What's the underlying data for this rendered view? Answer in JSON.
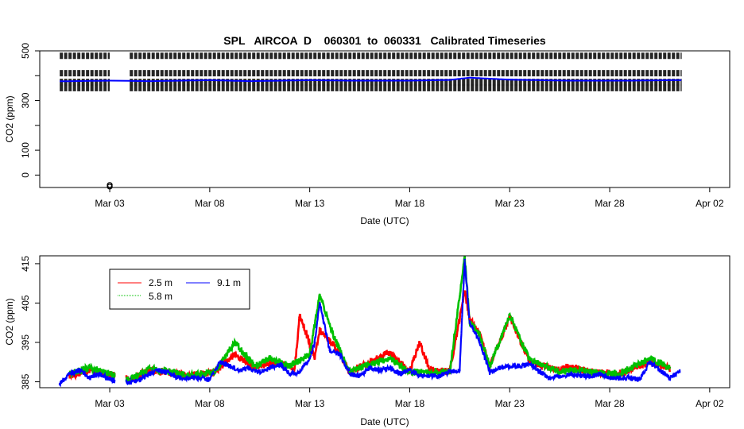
{
  "chart_data": [
    {
      "type": "scatter",
      "title": "SPL   AIRCOA  D    060301  to  060331   Calibrated Timeseries",
      "xlabel": "Date (UTC)",
      "ylabel": "CO2 (ppm)",
      "xlim": [
        "2006-02-27 12:00",
        "2006-04-03 00:00"
      ],
      "ylim": [
        -50,
        500
      ],
      "x_ticks": [
        "Mar 03",
        "Mar 08",
        "Mar 13",
        "Mar 18",
        "Mar 23",
        "Mar 28",
        "Apr 02"
      ],
      "y_ticks": [
        0,
        100,
        200,
        300,
        400,
        500
      ],
      "y_tick_labels": [
        "0",
        "100",
        "",
        "300",
        "",
        "500"
      ],
      "grid": false,
      "calibration_levels": [
        350,
        375,
        410,
        480
      ],
      "calibration_colour": "#000000",
      "gap": [
        "2006-03-03 00:00",
        "2006-03-04 00:00"
      ],
      "outlier": {
        "x": "2006-03-03 00:00",
        "y": -40
      },
      "series": [
        {
          "colour": "#0000ff",
          "x": [
            "2006-03-01",
            "2006-03-03",
            "2006-03-05",
            "2006-03-08",
            "2006-03-10",
            "2006-03-13",
            "2006-03-15",
            "2006-03-18",
            "2006-03-20",
            "2006-03-21",
            "2006-03-23",
            "2006-03-26",
            "2006-03-29",
            "2006-03-31"
          ],
          "y": [
            378,
            380,
            378,
            382,
            378,
            382,
            380,
            380,
            383,
            392,
            384,
            380,
            380,
            382
          ]
        }
      ]
    },
    {
      "type": "line",
      "xlabel": "Date (UTC)",
      "ylabel": "CO2 (ppm)",
      "xlim": [
        "2006-02-27 12:00",
        "2006-04-03 00:00"
      ],
      "ylim": [
        383.5,
        417
      ],
      "x_ticks": [
        "Mar 03",
        "Mar 08",
        "Mar 13",
        "Mar 18",
        "Mar 23",
        "Mar 28",
        "Apr 02"
      ],
      "y_ticks": [
        385,
        395,
        405,
        415
      ],
      "grid": false,
      "legend_position": "top-left",
      "series": [
        {
          "name": "2.5 m",
          "colour": "#ff0000",
          "x": [
            "2006-03-01 00:00",
            "2006-03-02 00:00",
            "2006-03-03 00:00",
            "2006-03-04 00:00",
            "2006-03-05 00:00",
            "2006-03-07 00:00",
            "2006-03-08 06:00",
            "2006-03-09 06:00",
            "2006-03-10 06:00",
            "2006-03-11 00:00",
            "2006-03-12 06:00",
            "2006-03-12 12:00",
            "2006-03-13 06:00",
            "2006-03-13 12:00",
            "2006-03-14 06:00",
            "2006-03-15 00:00",
            "2006-03-16 00:00",
            "2006-03-17 00:00",
            "2006-03-18 00:00",
            "2006-03-18 12:00",
            "2006-03-19 00:00",
            "2006-03-20 00:00",
            "2006-03-20 18:00",
            "2006-03-21 00:00",
            "2006-03-21 12:00",
            "2006-03-22 00:00",
            "2006-03-23 00:00",
            "2006-03-24 00:00",
            "2006-03-25 12:00",
            "2006-03-26 00:00",
            "2006-03-27 00:00",
            "2006-03-28 12:00",
            "2006-03-30 00:00",
            "2006-03-31 00:00"
          ],
          "y": [
            386.5,
            388,
            387,
            385.5,
            388,
            386.5,
            387.5,
            392,
            388.5,
            390,
            388.5,
            402,
            391,
            398,
            394,
            387.5,
            390,
            392.5,
            387.5,
            395,
            388,
            387.5,
            408,
            401,
            397,
            389,
            401.5,
            390,
            388,
            389,
            387.5,
            387,
            390,
            388.5
          ]
        },
        {
          "name": "5.8 m",
          "colour": "#00c000",
          "x": [
            "2006-03-01 00:00",
            "2006-03-02 00:00",
            "2006-03-03 00:00",
            "2006-03-04 00:00",
            "2006-03-05 00:00",
            "2006-03-07 00:00",
            "2006-03-08 06:00",
            "2006-03-09 06:00",
            "2006-03-10 06:00",
            "2006-03-11 00:00",
            "2006-03-12 00:00",
            "2006-03-13 00:00",
            "2006-03-13 12:00",
            "2006-03-14 06:00",
            "2006-03-15 00:00",
            "2006-03-16 00:00",
            "2006-03-17 00:00",
            "2006-03-18 00:00",
            "2006-03-19 00:00",
            "2006-03-20 00:00",
            "2006-03-20 18:00",
            "2006-03-21 00:00",
            "2006-03-21 12:00",
            "2006-03-22 00:00",
            "2006-03-23 00:00",
            "2006-03-24 00:00",
            "2006-03-25 12:00",
            "2006-03-26 00:00",
            "2006-03-27 00:00",
            "2006-03-28 12:00",
            "2006-03-30 00:00",
            "2006-03-31 00:00"
          ],
          "y": [
            387,
            388.5,
            387,
            385.5,
            388.5,
            386.5,
            387.5,
            395,
            389,
            391,
            389,
            392,
            407,
            396,
            387.5,
            389.5,
            391,
            387.5,
            387.5,
            387.5,
            416.5,
            400,
            397,
            389,
            402,
            390.5,
            387.5,
            388,
            387.5,
            387,
            391,
            388.5
          ]
        },
        {
          "name": "9.1 m",
          "colour": "#0000ff",
          "x": [
            "2006-02-28 12:00",
            "2006-03-01 00:00",
            "2006-03-01 12:00",
            "2006-03-02 00:00",
            "2006-03-02 12:00",
            "2006-03-03 00:00",
            "2006-03-04 00:00",
            "2006-03-04 12:00",
            "2006-03-05 00:00",
            "2006-03-05 12:00",
            "2006-03-06 12:00",
            "2006-03-07 12:00",
            "2006-03-08 00:00",
            "2006-03-08 12:00",
            "2006-03-09 00:00",
            "2006-03-09 12:00",
            "2006-03-10 00:00",
            "2006-03-10 12:00",
            "2006-03-11 00:00",
            "2006-03-11 12:00",
            "2006-03-12 00:00",
            "2006-03-12 12:00",
            "2006-03-13 00:00",
            "2006-03-13 06:00",
            "2006-03-13 12:00",
            "2006-03-14 00:00",
            "2006-03-14 12:00",
            "2006-03-15 00:00",
            "2006-03-15 12:00",
            "2006-03-16 00:00",
            "2006-03-16 12:00",
            "2006-03-17 00:00",
            "2006-03-17 12:00",
            "2006-03-18 00:00",
            "2006-03-18 12:00",
            "2006-03-19 00:00",
            "2006-03-19 12:00",
            "2006-03-20 00:00",
            "2006-03-20 12:00",
            "2006-03-20 18:00",
            "2006-03-21 00:00",
            "2006-03-21 12:00",
            "2006-03-22 00:00",
            "2006-03-22 12:00",
            "2006-03-23 00:00",
            "2006-03-23 12:00",
            "2006-03-24 00:00",
            "2006-03-24 12:00",
            "2006-03-25 00:00",
            "2006-03-25 12:00",
            "2006-03-26 00:00",
            "2006-03-26 12:00",
            "2006-03-27 00:00",
            "2006-03-27 12:00",
            "2006-03-28 00:00",
            "2006-03-28 12:00",
            "2006-03-29 00:00",
            "2006-03-29 12:00",
            "2006-03-30 00:00",
            "2006-03-30 12:00",
            "2006-03-31 00:00",
            "2006-03-31 12:00"
          ],
          "y": [
            384.5,
            387,
            388,
            386,
            387,
            385.5,
            385,
            385.5,
            387,
            388,
            386,
            386,
            385.5,
            390,
            389,
            388,
            388.5,
            387.5,
            388.5,
            389.5,
            387,
            387.5,
            391,
            395,
            405,
            393,
            392,
            387,
            386.5,
            388.5,
            388,
            388.5,
            387,
            388,
            386.5,
            386.5,
            386.5,
            387.5,
            388,
            416,
            400,
            395,
            387.5,
            388.5,
            389,
            389,
            389.5,
            387.5,
            386,
            386.5,
            387,
            386.5,
            386.5,
            387,
            386,
            386,
            386,
            385.5,
            390,
            388,
            386,
            387.5
          ]
        }
      ]
    }
  ]
}
